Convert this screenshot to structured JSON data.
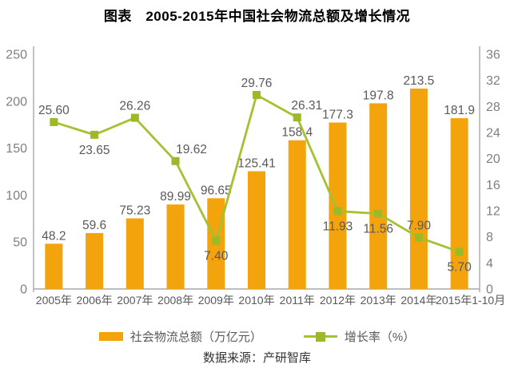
{
  "title": "图表　2005-2015年中国社会物流总额及增长情况",
  "legend": {
    "bar_label": "社会物流总额（万亿元）",
    "line_label": "增长率（%）"
  },
  "source": "数据来源：产研智库",
  "colors": {
    "bar": "#F3A30B",
    "line": "#A5C131",
    "marker": "#9CB928",
    "axis": "#A8A8A8",
    "axis_tick_text": "#7F7F7F",
    "data_label_text": "#595959",
    "x_label_text": "#595959"
  },
  "chart_data": {
    "type": "bar+line",
    "title": "图表　2005-2015年中国社会物流总额及增长情况",
    "categories": [
      "2005年",
      "2006年",
      "2007年",
      "2008年",
      "2009年",
      "2010年",
      "2011年",
      "2012年",
      "2013年",
      "2014年",
      "2015年1-10月"
    ],
    "series": [
      {
        "name": "社会物流总额（万亿元）",
        "type": "bar",
        "axis": "left",
        "values": [
          48.2,
          59.6,
          75.23,
          89.99,
          96.65,
          125.41,
          158.4,
          177.3,
          197.8,
          213.5,
          181.9
        ],
        "labels": [
          "48.2",
          "59.6",
          "75.23",
          "89.99",
          "96.65",
          "125.41",
          "158.4",
          "177.3",
          "197.8",
          "213.5",
          "181.9"
        ]
      },
      {
        "name": "增长率（%）",
        "type": "line",
        "axis": "right",
        "values": [
          25.6,
          23.65,
          26.26,
          19.62,
          7.4,
          29.76,
          26.31,
          11.93,
          11.56,
          7.9,
          5.7
        ],
        "labels": [
          "25.60",
          "23.65",
          "26.26",
          "19.62",
          "7.40",
          "29.76",
          "26.31",
          "11.93",
          "11.56",
          "7.90",
          "5.70"
        ],
        "label_pos": [
          "above",
          "below",
          "above",
          "above",
          "below",
          "above",
          "above",
          "below",
          "below",
          "above",
          "below"
        ],
        "label_dx": [
          0,
          0,
          0,
          20,
          0,
          0,
          12,
          0,
          0,
          0,
          0
        ]
      }
    ],
    "left_axis": {
      "min": 0,
      "max": 250,
      "step": 50,
      "ticks": [
        0,
        50,
        100,
        150,
        200,
        250
      ]
    },
    "right_axis": {
      "min": 0,
      "max": 36,
      "step": 4,
      "ticks": [
        0,
        4,
        8,
        12,
        16,
        20,
        24,
        28,
        32,
        36
      ]
    },
    "x_label_dx": [
      0,
      0,
      0,
      0,
      0,
      0,
      0,
      0,
      0,
      0,
      14
    ],
    "grid": false,
    "legend_position": "bottom",
    "source": "数据来源：产研智库"
  }
}
